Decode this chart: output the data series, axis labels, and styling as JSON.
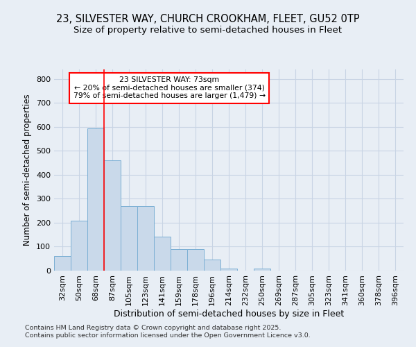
{
  "title_line1": "23, SILVESTER WAY, CHURCH CROOKHAM, FLEET, GU52 0TP",
  "title_line2": "Size of property relative to semi-detached houses in Fleet",
  "xlabel": "Distribution of semi-detached houses by size in Fleet",
  "ylabel": "Number of semi-detached properties",
  "footer_line1": "Contains HM Land Registry data © Crown copyright and database right 2025.",
  "footer_line2": "Contains public sector information licensed under the Open Government Licence v3.0.",
  "categories": [
    "32sqm",
    "50sqm",
    "68sqm",
    "87sqm",
    "105sqm",
    "123sqm",
    "141sqm",
    "159sqm",
    "178sqm",
    "196sqm",
    "214sqm",
    "232sqm",
    "250sqm",
    "269sqm",
    "287sqm",
    "305sqm",
    "323sqm",
    "341sqm",
    "360sqm",
    "378sqm",
    "396sqm"
  ],
  "values": [
    60,
    210,
    595,
    460,
    270,
    270,
    143,
    90,
    90,
    47,
    10,
    0,
    10,
    0,
    0,
    0,
    0,
    0,
    0,
    0,
    0
  ],
  "bar_color": "#c9d9ea",
  "bar_edge_color": "#7bafd4",
  "grid_color": "#c8d4e4",
  "background_color": "#e8eef5",
  "red_line_index": 2,
  "annotation_text_line1": "23 SILVESTER WAY: 73sqm",
  "annotation_text_line2": "← 20% of semi-detached houses are smaller (374)",
  "annotation_text_line3": "79% of semi-detached houses are larger (1,479) →",
  "annotation_box_facecolor": "white",
  "annotation_box_edgecolor": "red",
  "ylim": [
    0,
    840
  ],
  "yticks": [
    0,
    100,
    200,
    300,
    400,
    500,
    600,
    700,
    800
  ]
}
